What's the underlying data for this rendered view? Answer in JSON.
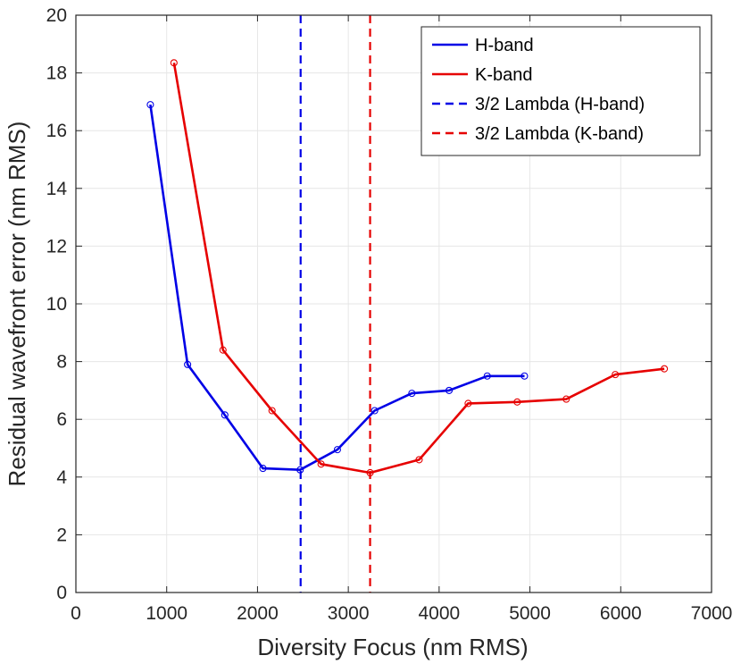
{
  "chart_data": {
    "type": "line",
    "xlabel": "Diversity Focus (nm RMS)",
    "ylabel": "Residual wavefront error (nm RMS)",
    "xlim": [
      0,
      7000
    ],
    "ylim": [
      0,
      20
    ],
    "xticks": [
      0,
      1000,
      2000,
      3000,
      4000,
      5000,
      6000,
      7000
    ],
    "yticks": [
      0,
      2,
      4,
      6,
      8,
      10,
      12,
      14,
      16,
      18,
      20
    ],
    "grid": true,
    "legend_position": "top-right",
    "series": [
      {
        "name": "H-band",
        "color": "#0000e6",
        "style": "solid",
        "marker": "circle",
        "x": [
          820,
          1230,
          1640,
          2060,
          2470,
          2880,
          3290,
          3700,
          4110,
          4530,
          4940
        ],
        "y": [
          16.9,
          7.9,
          6.15,
          4.3,
          4.25,
          4.95,
          6.3,
          6.9,
          7.0,
          7.5,
          7.5
        ]
      },
      {
        "name": "K-band",
        "color": "#e60000",
        "style": "solid",
        "marker": "circle",
        "x": [
          1080,
          1620,
          2160,
          2700,
          3240,
          3780,
          4320,
          4860,
          5400,
          5940,
          6480
        ],
        "y": [
          18.35,
          8.4,
          6.3,
          4.45,
          4.15,
          4.6,
          6.55,
          6.6,
          6.7,
          7.55,
          7.75
        ]
      }
    ],
    "vlines": [
      {
        "name": "3/2 Lambda (H-band)",
        "x": 2475,
        "color": "#0000e6",
        "style": "dashed"
      },
      {
        "name": "3/2 Lambda (K-band)",
        "x": 3240,
        "color": "#e60000",
        "style": "dashed"
      }
    ]
  }
}
